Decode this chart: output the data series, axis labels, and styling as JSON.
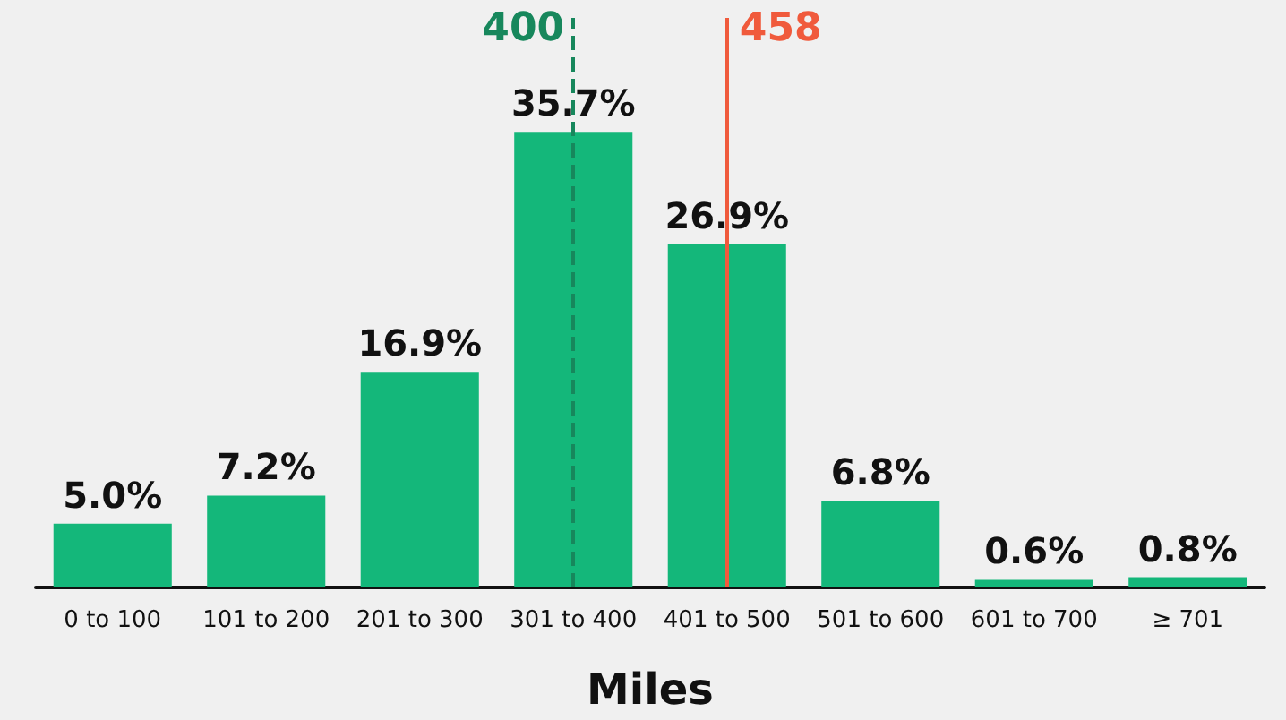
{
  "chart_data": {
    "type": "bar",
    "xlabel": "Miles",
    "categories": [
      "0 to 100",
      "101 to 200",
      "201 to 300",
      "301 to 400",
      "401 to 500",
      "501 to 600",
      "601 to 700",
      "≥ 701"
    ],
    "values": [
      5.0,
      7.2,
      16.9,
      35.7,
      26.9,
      6.8,
      0.6,
      0.8
    ],
    "value_labels": [
      "5.0%",
      "7.2%",
      "16.9%",
      "35.7%",
      "26.9%",
      "6.8%",
      "0.6%",
      "0.8%"
    ],
    "color": "#14b77a",
    "tick_labels": "x",
    "grid": false,
    "ref_lines": [
      {
        "axis": "x",
        "value": "301 to 400",
        "label": "400",
        "color": "#17875c",
        "line_style": "dashed"
      },
      {
        "axis": "x",
        "value": "401 to 500",
        "label": "458",
        "color": "#f05a3c",
        "line_style": "solid"
      }
    ]
  }
}
